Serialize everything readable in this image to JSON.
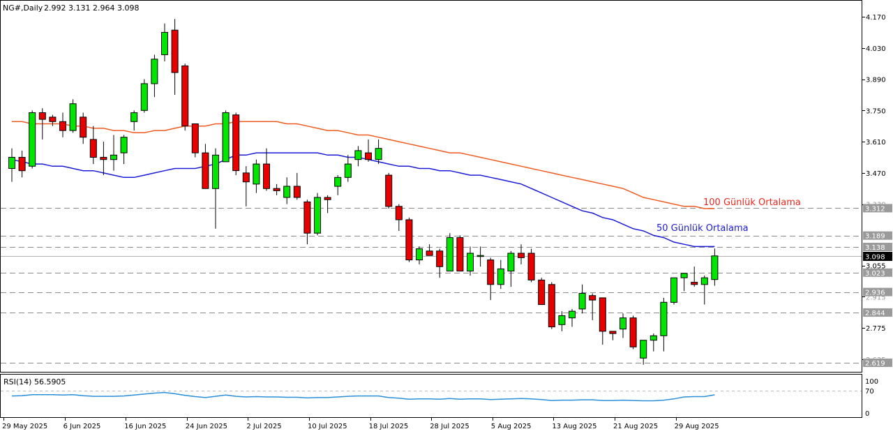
{
  "header": {
    "symbol_label": "NG#,Daily",
    "ohlc_text": "2.992 3.131 2.964 3.098"
  },
  "colors": {
    "bull": "#00e600",
    "bear": "#e60000",
    "ma50": "#1a1ad6",
    "ma100": "#f05a1e",
    "rsi": "#2a8fd8",
    "grid_dash": "#8a8a8a",
    "price_tag_bg": "#000000"
  },
  "annotations": {
    "ma100_label": "100 Günlük Ortalama",
    "ma50_label": "50 Günlük Ortalama"
  },
  "price_axis": {
    "ticks": [
      "4.170",
      "4.030",
      "3.890",
      "3.750",
      "3.610",
      "3.470",
      "3.055",
      "2.775"
    ],
    "partial_ticks": [
      "3.330",
      "2.915",
      "2.635"
    ]
  },
  "levels": [
    {
      "value": 3.312,
      "label": "3.312",
      "dashed": true
    },
    {
      "value": 3.189,
      "label": "3.189",
      "dashed": true
    },
    {
      "value": 3.138,
      "label": "3.138",
      "dashed": true
    },
    {
      "value": 3.023,
      "label": "3.023",
      "dashed": true
    },
    {
      "value": 2.936,
      "label": "2.936",
      "dashed": true
    },
    {
      "value": 2.844,
      "label": "2.844",
      "dashed": true
    },
    {
      "value": 2.619,
      "label": "2.619",
      "dashed": true
    }
  ],
  "current_price": {
    "value": 3.098,
    "label": "3.098"
  },
  "date_axis": {
    "labels": [
      {
        "text": "29 May 2025",
        "index": 0
      },
      {
        "text": "6 Jun 2025",
        "index": 6
      },
      {
        "text": "16 Jun 2025",
        "index": 12
      },
      {
        "text": "24 Jun 2025",
        "index": 18
      },
      {
        "text": "2 Jul 2025",
        "index": 24
      },
      {
        "text": "10 Jul 2025",
        "index": 30
      },
      {
        "text": "18 Jul 2025",
        "index": 36
      },
      {
        "text": "28 Jul 2025",
        "index": 42
      },
      {
        "text": "5 Aug 2025",
        "index": 48
      },
      {
        "text": "13 Aug 2025",
        "index": 54
      },
      {
        "text": "21 Aug 2025",
        "index": 60
      },
      {
        "text": "29 Aug 2025",
        "index": 66
      }
    ]
  },
  "rsi_panel": {
    "label": "RSI(14) 56.5905",
    "ticks": [
      "100",
      "70",
      "0"
    ],
    "level": 70
  },
  "chart_data": {
    "type": "candlestick",
    "title": "NG#,Daily",
    "ylim": [
      2.59,
      4.22
    ],
    "candles": [
      {
        "o": 3.49,
        "h": 3.58,
        "l": 3.43,
        "c": 3.54
      },
      {
        "o": 3.54,
        "h": 3.57,
        "l": 3.45,
        "c": 3.48
      },
      {
        "o": 3.5,
        "h": 3.75,
        "l": 3.49,
        "c": 3.74
      },
      {
        "o": 3.74,
        "h": 3.76,
        "l": 3.62,
        "c": 3.71
      },
      {
        "o": 3.72,
        "h": 3.73,
        "l": 3.68,
        "c": 3.7
      },
      {
        "o": 3.7,
        "h": 3.74,
        "l": 3.63,
        "c": 3.66
      },
      {
        "o": 3.66,
        "h": 3.8,
        "l": 3.65,
        "c": 3.78
      },
      {
        "o": 3.72,
        "h": 3.74,
        "l": 3.6,
        "c": 3.63
      },
      {
        "o": 3.62,
        "h": 3.68,
        "l": 3.51,
        "c": 3.54
      },
      {
        "o": 3.54,
        "h": 3.61,
        "l": 3.46,
        "c": 3.53
      },
      {
        "o": 3.53,
        "h": 3.64,
        "l": 3.48,
        "c": 3.55
      },
      {
        "o": 3.56,
        "h": 3.64,
        "l": 3.51,
        "c": 3.63
      },
      {
        "o": 3.7,
        "h": 3.75,
        "l": 3.66,
        "c": 3.74
      },
      {
        "o": 3.75,
        "h": 3.89,
        "l": 3.74,
        "c": 3.87
      },
      {
        "o": 3.87,
        "h": 4.0,
        "l": 3.81,
        "c": 3.98
      },
      {
        "o": 4.0,
        "h": 4.14,
        "l": 3.97,
        "c": 4.1
      },
      {
        "o": 4.11,
        "h": 4.16,
        "l": 3.82,
        "c": 3.92
      },
      {
        "o": 3.95,
        "h": 3.96,
        "l": 3.66,
        "c": 3.68
      },
      {
        "o": 3.69,
        "h": 3.69,
        "l": 3.54,
        "c": 3.56
      },
      {
        "o": 3.56,
        "h": 3.6,
        "l": 3.4,
        "c": 3.4
      },
      {
        "o": 3.4,
        "h": 3.58,
        "l": 3.22,
        "c": 3.55
      },
      {
        "o": 3.52,
        "h": 3.75,
        "l": 3.52,
        "c": 3.74
      },
      {
        "o": 3.73,
        "h": 3.74,
        "l": 3.46,
        "c": 3.48
      },
      {
        "o": 3.47,
        "h": 3.5,
        "l": 3.32,
        "c": 3.43
      },
      {
        "o": 3.42,
        "h": 3.53,
        "l": 3.38,
        "c": 3.51
      },
      {
        "o": 3.51,
        "h": 3.58,
        "l": 3.39,
        "c": 3.4
      },
      {
        "o": 3.4,
        "h": 3.42,
        "l": 3.37,
        "c": 3.39
      },
      {
        "o": 3.36,
        "h": 3.45,
        "l": 3.33,
        "c": 3.41
      },
      {
        "o": 3.41,
        "h": 3.47,
        "l": 3.35,
        "c": 3.36
      },
      {
        "o": 3.34,
        "h": 3.35,
        "l": 3.15,
        "c": 3.2
      },
      {
        "o": 3.2,
        "h": 3.38,
        "l": 3.19,
        "c": 3.36
      },
      {
        "o": 3.36,
        "h": 3.37,
        "l": 3.29,
        "c": 3.35
      },
      {
        "o": 3.41,
        "h": 3.46,
        "l": 3.37,
        "c": 3.45
      },
      {
        "o": 3.45,
        "h": 3.55,
        "l": 3.43,
        "c": 3.51
      },
      {
        "o": 3.53,
        "h": 3.59,
        "l": 3.5,
        "c": 3.57
      },
      {
        "o": 3.56,
        "h": 3.62,
        "l": 3.52,
        "c": 3.53
      },
      {
        "o": 3.53,
        "h": 3.62,
        "l": 3.51,
        "c": 3.58
      },
      {
        "o": 3.46,
        "h": 3.47,
        "l": 3.31,
        "c": 3.32
      },
      {
        "o": 3.32,
        "h": 3.33,
        "l": 3.21,
        "c": 3.26
      },
      {
        "o": 3.26,
        "h": 3.27,
        "l": 3.07,
        "c": 3.08
      },
      {
        "o": 3.08,
        "h": 3.14,
        "l": 3.06,
        "c": 3.13
      },
      {
        "o": 3.12,
        "h": 3.15,
        "l": 3.1,
        "c": 3.1
      },
      {
        "o": 3.12,
        "h": 3.13,
        "l": 3.0,
        "c": 3.05
      },
      {
        "o": 3.03,
        "h": 3.2,
        "l": 3.03,
        "c": 3.18
      },
      {
        "o": 3.18,
        "h": 3.19,
        "l": 3.03,
        "c": 3.03
      },
      {
        "o": 3.03,
        "h": 3.14,
        "l": 3.01,
        "c": 3.11
      },
      {
        "o": 3.1,
        "h": 3.14,
        "l": 3.05,
        "c": 3.1
      },
      {
        "o": 3.08,
        "h": 3.09,
        "l": 2.9,
        "c": 2.97
      },
      {
        "o": 2.97,
        "h": 3.08,
        "l": 2.95,
        "c": 3.04
      },
      {
        "o": 3.03,
        "h": 3.12,
        "l": 2.96,
        "c": 3.11
      },
      {
        "o": 3.11,
        "h": 3.15,
        "l": 3.06,
        "c": 3.09
      },
      {
        "o": 3.11,
        "h": 3.13,
        "l": 2.98,
        "c": 2.99
      },
      {
        "o": 2.99,
        "h": 3.0,
        "l": 2.88,
        "c": 2.88
      },
      {
        "o": 2.97,
        "h": 2.98,
        "l": 2.77,
        "c": 2.78
      },
      {
        "o": 2.79,
        "h": 2.85,
        "l": 2.76,
        "c": 2.83
      },
      {
        "o": 2.82,
        "h": 2.86,
        "l": 2.78,
        "c": 2.85
      },
      {
        "o": 2.86,
        "h": 2.97,
        "l": 2.84,
        "c": 2.93
      },
      {
        "o": 2.92,
        "h": 2.93,
        "l": 2.81,
        "c": 2.9
      },
      {
        "o": 2.91,
        "h": 2.91,
        "l": 2.7,
        "c": 2.76
      },
      {
        "o": 2.76,
        "h": 2.76,
        "l": 2.72,
        "c": 2.75
      },
      {
        "o": 2.77,
        "h": 2.84,
        "l": 2.73,
        "c": 2.82
      },
      {
        "o": 2.82,
        "h": 2.83,
        "l": 2.68,
        "c": 2.69
      },
      {
        "o": 2.64,
        "h": 2.72,
        "l": 2.61,
        "c": 2.72
      },
      {
        "o": 2.72,
        "h": 2.75,
        "l": 2.67,
        "c": 2.74
      },
      {
        "o": 2.74,
        "h": 2.91,
        "l": 2.67,
        "c": 2.89
      },
      {
        "o": 2.89,
        "h": 3.0,
        "l": 2.88,
        "c": 3.0
      },
      {
        "o": 3.0,
        "h": 3.02,
        "l": 2.94,
        "c": 3.02
      },
      {
        "o": 2.98,
        "h": 3.05,
        "l": 2.96,
        "c": 2.97
      },
      {
        "o": 2.97,
        "h": 3.01,
        "l": 2.88,
        "c": 3.0
      },
      {
        "o": 2.992,
        "h": 3.131,
        "l": 2.964,
        "c": 3.098
      }
    ],
    "ma50": [
      3.53,
      3.52,
      3.51,
      3.51,
      3.5,
      3.5,
      3.49,
      3.48,
      3.48,
      3.47,
      3.46,
      3.45,
      3.45,
      3.46,
      3.47,
      3.48,
      3.49,
      3.49,
      3.49,
      3.5,
      3.51,
      3.53,
      3.55,
      3.55,
      3.56,
      3.56,
      3.56,
      3.56,
      3.56,
      3.56,
      3.56,
      3.55,
      3.55,
      3.54,
      3.54,
      3.53,
      3.52,
      3.51,
      3.5,
      3.5,
      3.49,
      3.49,
      3.48,
      3.48,
      3.47,
      3.46,
      3.46,
      3.45,
      3.44,
      3.43,
      3.42,
      3.4,
      3.38,
      3.36,
      3.34,
      3.32,
      3.3,
      3.29,
      3.27,
      3.26,
      3.24,
      3.22,
      3.21,
      3.19,
      3.18,
      3.16,
      3.15,
      3.14,
      3.14,
      3.14
    ],
    "ma100": [
      3.7,
      3.7,
      3.69,
      3.69,
      3.69,
      3.69,
      3.68,
      3.68,
      3.67,
      3.67,
      3.66,
      3.66,
      3.65,
      3.65,
      3.66,
      3.66,
      3.67,
      3.68,
      3.68,
      3.68,
      3.69,
      3.69,
      3.7,
      3.7,
      3.7,
      3.7,
      3.7,
      3.69,
      3.69,
      3.68,
      3.67,
      3.66,
      3.66,
      3.65,
      3.64,
      3.64,
      3.63,
      3.62,
      3.61,
      3.6,
      3.59,
      3.58,
      3.57,
      3.56,
      3.56,
      3.55,
      3.54,
      3.53,
      3.52,
      3.51,
      3.5,
      3.49,
      3.48,
      3.47,
      3.46,
      3.45,
      3.44,
      3.43,
      3.42,
      3.41,
      3.4,
      3.38,
      3.36,
      3.35,
      3.34,
      3.33,
      3.32,
      3.32,
      3.31,
      3.31
    ],
    "rsi": [
      53,
      54,
      57,
      57,
      57,
      56,
      57,
      54,
      52,
      52,
      52,
      53,
      56,
      59,
      62,
      64,
      60,
      55,
      51,
      48,
      52,
      56,
      52,
      50,
      51,
      50,
      50,
      49,
      49,
      47,
      48,
      48,
      50,
      52,
      53,
      53,
      53,
      48,
      46,
      43,
      44,
      44,
      43,
      45,
      43,
      44,
      44,
      42,
      43,
      44,
      45,
      44,
      42,
      39,
      40,
      40,
      41,
      41,
      39,
      39,
      40,
      39,
      38,
      38,
      40,
      44,
      50,
      51,
      51,
      56.59
    ]
  }
}
